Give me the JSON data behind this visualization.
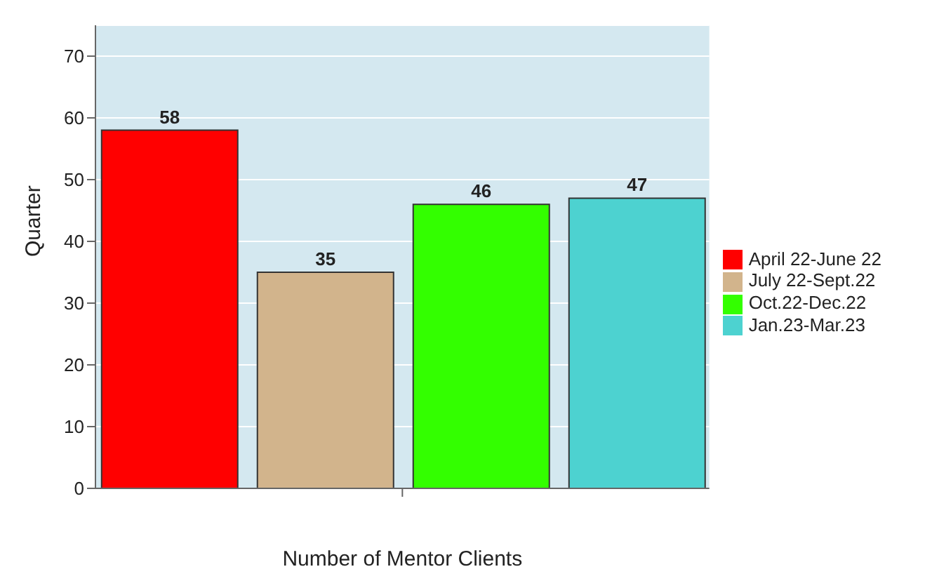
{
  "chart_data": {
    "type": "bar",
    "xlabel": "Number of Mentor Clients",
    "ylabel": "Quarter",
    "categories": [
      null
    ],
    "series": [
      {
        "name": "April 22-June 22",
        "color": "#ff0000",
        "values": [
          58
        ]
      },
      {
        "name": "July 22-Sept.22",
        "color": "#d2b48c",
        "values": [
          35
        ]
      },
      {
        "name": "Oct.22-Dec.22",
        "color": "#33ff00",
        "values": [
          46
        ]
      },
      {
        "name": "Jan.23-Mar.23",
        "color": "#4dd2d0",
        "values": [
          47
        ]
      }
    ],
    "ylim": [
      0,
      75
    ],
    "yticks": [
      0,
      10,
      20,
      30,
      40,
      50,
      60,
      70
    ],
    "grid": "y",
    "legend": "right",
    "data_labels": true
  }
}
